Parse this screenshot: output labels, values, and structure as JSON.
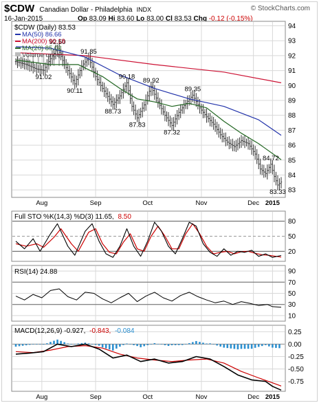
{
  "header": {
    "symbol": "$CDW",
    "name": "Canadian Dollar - Philadelphia",
    "exchange": "INDX",
    "date": "16-Jan-2015",
    "open_label": "Op",
    "open": "83.09",
    "high_label": "Hi",
    "high": "83.60",
    "low_label": "Lo",
    "low": "83.00",
    "close_label": "Cl",
    "close": "83.53",
    "chg_label": "Chg",
    "chg": "-0.12 (-0.15%)",
    "brand": "© StockCharts.com"
  },
  "colors": {
    "ma50": "#2233aa",
    "ma200": "#cc1133",
    "ma20": "#226622",
    "price_bar": "#333333",
    "pct_k": "#000000",
    "pct_d": "#cc0000",
    "macd": "#000000",
    "signal": "#cc0000",
    "histogram": "#2a8fd0",
    "grid": "#d8d8d8",
    "volume": "#bbbbbb"
  },
  "chart_data": [
    {
      "type": "line",
      "panel": "price",
      "legend": {
        "price": "$CDW (Daily) 83.53",
        "ma50": "MA(50) 86.66",
        "ma200": "MA(200) 90.18",
        "ma20": "MA(20) 85.02",
        "volume": "Volume undef"
      },
      "x_labels": [
        "Aug",
        "Sep",
        "Oct",
        "Nov",
        "Dec",
        "2015"
      ],
      "y_ticks": [
        83,
        84,
        85,
        86,
        87,
        88,
        89,
        90,
        91,
        92,
        93,
        94
      ],
      "ylim": [
        82.5,
        94.3
      ],
      "grid": true,
      "price_points": [
        {
          "d": 0,
          "v": 91.6
        },
        {
          "d": 6,
          "v": 91.4
        },
        {
          "d": 12,
          "v": 91.1
        },
        {
          "d": 16,
          "v": 91.02
        },
        {
          "d": 20,
          "v": 91.8
        },
        {
          "d": 24,
          "v": 92.5
        },
        {
          "d": 28,
          "v": 91.4
        },
        {
          "d": 31,
          "v": 90.8
        },
        {
          "d": 34,
          "v": 90.11
        },
        {
          "d": 38,
          "v": 91.3
        },
        {
          "d": 42,
          "v": 91.85
        },
        {
          "d": 46,
          "v": 90.6
        },
        {
          "d": 50,
          "v": 89.8
        },
        {
          "d": 56,
          "v": 88.73
        },
        {
          "d": 60,
          "v": 89.3
        },
        {
          "d": 64,
          "v": 90.18
        },
        {
          "d": 67,
          "v": 88.6
        },
        {
          "d": 70,
          "v": 87.83
        },
        {
          "d": 74,
          "v": 88.7
        },
        {
          "d": 78,
          "v": 89.92
        },
        {
          "d": 82,
          "v": 88.9
        },
        {
          "d": 86,
          "v": 88.0
        },
        {
          "d": 90,
          "v": 87.32
        },
        {
          "d": 94,
          "v": 88.2
        },
        {
          "d": 98,
          "v": 88.8
        },
        {
          "d": 102,
          "v": 89.35
        },
        {
          "d": 106,
          "v": 88.5
        },
        {
          "d": 110,
          "v": 87.9
        },
        {
          "d": 114,
          "v": 87.4
        },
        {
          "d": 118,
          "v": 86.7
        },
        {
          "d": 122,
          "v": 86.2
        },
        {
          "d": 126,
          "v": 85.9
        },
        {
          "d": 130,
          "v": 86.3
        },
        {
          "d": 134,
          "v": 86.1
        },
        {
          "d": 138,
          "v": 85.4
        },
        {
          "d": 141,
          "v": 84.4
        },
        {
          "d": 144,
          "v": 84.1
        },
        {
          "d": 147,
          "v": 84.72
        },
        {
          "d": 149,
          "v": 83.9
        },
        {
          "d": 151,
          "v": 83.33
        },
        {
          "d": 153,
          "v": 83.53
        }
      ],
      "ma200": [
        {
          "d": 0,
          "v": 92.2
        },
        {
          "d": 40,
          "v": 92.0
        },
        {
          "d": 80,
          "v": 91.4
        },
        {
          "d": 120,
          "v": 90.9
        },
        {
          "d": 153,
          "v": 90.18
        }
      ],
      "ma50": [
        {
          "d": 0,
          "v": 92.6
        },
        {
          "d": 20,
          "v": 92.5
        },
        {
          "d": 40,
          "v": 91.9
        },
        {
          "d": 60,
          "v": 90.7
        },
        {
          "d": 80,
          "v": 89.8
        },
        {
          "d": 100,
          "v": 89.1
        },
        {
          "d": 120,
          "v": 88.6
        },
        {
          "d": 140,
          "v": 87.7
        },
        {
          "d": 153,
          "v": 86.66
        }
      ],
      "ma20": [
        {
          "d": 0,
          "v": 91.7
        },
        {
          "d": 20,
          "v": 91.4
        },
        {
          "d": 36,
          "v": 91.4
        },
        {
          "d": 50,
          "v": 90.6
        },
        {
          "d": 60,
          "v": 89.8
        },
        {
          "d": 70,
          "v": 89.1
        },
        {
          "d": 80,
          "v": 88.9
        },
        {
          "d": 90,
          "v": 88.6
        },
        {
          "d": 100,
          "v": 88.8
        },
        {
          "d": 110,
          "v": 88.5
        },
        {
          "d": 120,
          "v": 87.6
        },
        {
          "d": 130,
          "v": 86.8
        },
        {
          "d": 140,
          "v": 86.1
        },
        {
          "d": 153,
          "v": 85.02
        }
      ],
      "annotations": [
        {
          "text": "92.50",
          "d": 24,
          "v": 92.5,
          "pos": "above"
        },
        {
          "text": "91.85",
          "d": 42,
          "v": 91.85,
          "pos": "above"
        },
        {
          "text": "91.02",
          "d": 16,
          "v": 91.02,
          "pos": "below"
        },
        {
          "text": "90.11",
          "d": 34,
          "v": 90.11,
          "pos": "below"
        },
        {
          "text": "90.18",
          "d": 64,
          "v": 90.18,
          "pos": "above"
        },
        {
          "text": "88.73",
          "d": 56,
          "v": 88.73,
          "pos": "below"
        },
        {
          "text": "89.92",
          "d": 78,
          "v": 89.92,
          "pos": "above"
        },
        {
          "text": "87.83",
          "d": 70,
          "v": 87.83,
          "pos": "below"
        },
        {
          "text": "87.32",
          "d": 90,
          "v": 87.32,
          "pos": "below"
        },
        {
          "text": "89.35",
          "d": 102,
          "v": 89.35,
          "pos": "above"
        },
        {
          "text": "84.72",
          "d": 147,
          "v": 84.72,
          "pos": "above"
        },
        {
          "text": "83.33",
          "d": 151,
          "v": 83.33,
          "pos": "below"
        }
      ]
    },
    {
      "type": "line",
      "panel": "stochastic",
      "legend": {
        "label": "Full STO %K(14,3) %D(3) 11.65,",
        "d_value": "8.50"
      },
      "y_ticks": [
        20,
        50,
        80
      ],
      "ylim": [
        0,
        100
      ],
      "levels": [
        20,
        50,
        80
      ],
      "pct_k": [
        {
          "d": 0,
          "v": 40
        },
        {
          "d": 5,
          "v": 25
        },
        {
          "d": 10,
          "v": 45
        },
        {
          "d": 14,
          "v": 20
        },
        {
          "d": 20,
          "v": 55
        },
        {
          "d": 24,
          "v": 75
        },
        {
          "d": 30,
          "v": 30
        },
        {
          "d": 34,
          "v": 12
        },
        {
          "d": 40,
          "v": 60
        },
        {
          "d": 44,
          "v": 75
        },
        {
          "d": 48,
          "v": 40
        },
        {
          "d": 52,
          "v": 15
        },
        {
          "d": 56,
          "v": 8
        },
        {
          "d": 60,
          "v": 30
        },
        {
          "d": 64,
          "v": 65
        },
        {
          "d": 68,
          "v": 30
        },
        {
          "d": 72,
          "v": 10
        },
        {
          "d": 76,
          "v": 40
        },
        {
          "d": 80,
          "v": 78
        },
        {
          "d": 84,
          "v": 60
        },
        {
          "d": 88,
          "v": 30
        },
        {
          "d": 92,
          "v": 15
        },
        {
          "d": 96,
          "v": 45
        },
        {
          "d": 100,
          "v": 78
        },
        {
          "d": 104,
          "v": 70
        },
        {
          "d": 108,
          "v": 35
        },
        {
          "d": 112,
          "v": 18
        },
        {
          "d": 116,
          "v": 10
        },
        {
          "d": 120,
          "v": 25
        },
        {
          "d": 124,
          "v": 12
        },
        {
          "d": 128,
          "v": 20
        },
        {
          "d": 132,
          "v": 18
        },
        {
          "d": 136,
          "v": 22
        },
        {
          "d": 140,
          "v": 10
        },
        {
          "d": 144,
          "v": 15
        },
        {
          "d": 148,
          "v": 8
        },
        {
          "d": 153,
          "v": 11.65
        }
      ],
      "pct_d": [
        {
          "d": 0,
          "v": 35
        },
        {
          "d": 6,
          "v": 30
        },
        {
          "d": 12,
          "v": 35
        },
        {
          "d": 16,
          "v": 28
        },
        {
          "d": 22,
          "v": 48
        },
        {
          "d": 26,
          "v": 65
        },
        {
          "d": 32,
          "v": 35
        },
        {
          "d": 36,
          "v": 20
        },
        {
          "d": 42,
          "v": 58
        },
        {
          "d": 46,
          "v": 65
        },
        {
          "d": 50,
          "v": 35
        },
        {
          "d": 54,
          "v": 18
        },
        {
          "d": 58,
          "v": 15
        },
        {
          "d": 62,
          "v": 38
        },
        {
          "d": 66,
          "v": 55
        },
        {
          "d": 70,
          "v": 25
        },
        {
          "d": 74,
          "v": 20
        },
        {
          "d": 78,
          "v": 50
        },
        {
          "d": 82,
          "v": 70
        },
        {
          "d": 86,
          "v": 50
        },
        {
          "d": 90,
          "v": 25
        },
        {
          "d": 94,
          "v": 25
        },
        {
          "d": 98,
          "v": 55
        },
        {
          "d": 102,
          "v": 75
        },
        {
          "d": 106,
          "v": 55
        },
        {
          "d": 110,
          "v": 30
        },
        {
          "d": 114,
          "v": 15
        },
        {
          "d": 118,
          "v": 18
        },
        {
          "d": 122,
          "v": 20
        },
        {
          "d": 126,
          "v": 15
        },
        {
          "d": 130,
          "v": 19
        },
        {
          "d": 134,
          "v": 20
        },
        {
          "d": 138,
          "v": 16
        },
        {
          "d": 142,
          "v": 13
        },
        {
          "d": 146,
          "v": 12
        },
        {
          "d": 153,
          "v": 8.5
        }
      ]
    },
    {
      "type": "line",
      "panel": "rsi",
      "legend": {
        "label": "RSI(14) 24.88"
      },
      "y_ticks": [
        10,
        30,
        50,
        70,
        90
      ],
      "ylim": [
        0,
        100
      ],
      "levels": [
        30,
        70
      ],
      "rsi": [
        {
          "d": 0,
          "v": 45
        },
        {
          "d": 5,
          "v": 38
        },
        {
          "d": 10,
          "v": 48
        },
        {
          "d": 15,
          "v": 42
        },
        {
          "d": 20,
          "v": 55
        },
        {
          "d": 25,
          "v": 58
        },
        {
          "d": 30,
          "v": 44
        },
        {
          "d": 35,
          "v": 38
        },
        {
          "d": 40,
          "v": 52
        },
        {
          "d": 45,
          "v": 50
        },
        {
          "d": 50,
          "v": 40
        },
        {
          "d": 55,
          "v": 33
        },
        {
          "d": 60,
          "v": 42
        },
        {
          "d": 65,
          "v": 50
        },
        {
          "d": 70,
          "v": 35
        },
        {
          "d": 75,
          "v": 45
        },
        {
          "d": 80,
          "v": 52
        },
        {
          "d": 85,
          "v": 42
        },
        {
          "d": 90,
          "v": 36
        },
        {
          "d": 95,
          "v": 46
        },
        {
          "d": 100,
          "v": 52
        },
        {
          "d": 105,
          "v": 44
        },
        {
          "d": 110,
          "v": 38
        },
        {
          "d": 115,
          "v": 33
        },
        {
          "d": 120,
          "v": 36
        },
        {
          "d": 125,
          "v": 30
        },
        {
          "d": 130,
          "v": 35
        },
        {
          "d": 135,
          "v": 32
        },
        {
          "d": 140,
          "v": 28
        },
        {
          "d": 145,
          "v": 30
        },
        {
          "d": 148,
          "v": 26
        },
        {
          "d": 153,
          "v": 24.88
        }
      ]
    },
    {
      "type": "line",
      "panel": "macd",
      "legend": {
        "label": "MACD(12,26,9) -0.927,",
        "signal_value": "-0.843,",
        "hist_value": "-0.084"
      },
      "y_ticks": [
        0.25,
        0.0,
        -0.25,
        -0.5,
        -0.75
      ],
      "y_tick_labels": [
        "0.25",
        "0.00",
        "-0.25",
        "-0.50",
        "-0.75"
      ],
      "ylim": [
        -0.95,
        0.38
      ],
      "macd": [
        {
          "d": 0,
          "v": -0.2
        },
        {
          "d": 8,
          "v": -0.18
        },
        {
          "d": 16,
          "v": -0.15
        },
        {
          "d": 24,
          "v": 0.0
        },
        {
          "d": 32,
          "v": -0.05
        },
        {
          "d": 40,
          "v": 0.0
        },
        {
          "d": 48,
          "v": -0.1
        },
        {
          "d": 56,
          "v": -0.28
        },
        {
          "d": 64,
          "v": -0.22
        },
        {
          "d": 72,
          "v": -0.35
        },
        {
          "d": 80,
          "v": -0.3
        },
        {
          "d": 88,
          "v": -0.38
        },
        {
          "d": 96,
          "v": -0.35
        },
        {
          "d": 104,
          "v": -0.25
        },
        {
          "d": 112,
          "v": -0.3
        },
        {
          "d": 120,
          "v": -0.45
        },
        {
          "d": 128,
          "v": -0.62
        },
        {
          "d": 136,
          "v": -0.72
        },
        {
          "d": 144,
          "v": -0.75
        },
        {
          "d": 148,
          "v": -0.85
        },
        {
          "d": 153,
          "v": -0.927
        }
      ],
      "signal": [
        {
          "d": 0,
          "v": -0.15
        },
        {
          "d": 10,
          "v": -0.17
        },
        {
          "d": 20,
          "v": -0.12
        },
        {
          "d": 30,
          "v": -0.05
        },
        {
          "d": 40,
          "v": -0.03
        },
        {
          "d": 50,
          "v": -0.08
        },
        {
          "d": 60,
          "v": -0.2
        },
        {
          "d": 70,
          "v": -0.28
        },
        {
          "d": 80,
          "v": -0.32
        },
        {
          "d": 90,
          "v": -0.35
        },
        {
          "d": 100,
          "v": -0.32
        },
        {
          "d": 110,
          "v": -0.3
        },
        {
          "d": 120,
          "v": -0.38
        },
        {
          "d": 130,
          "v": -0.55
        },
        {
          "d": 140,
          "v": -0.68
        },
        {
          "d": 148,
          "v": -0.78
        },
        {
          "d": 153,
          "v": -0.843
        }
      ]
    }
  ]
}
